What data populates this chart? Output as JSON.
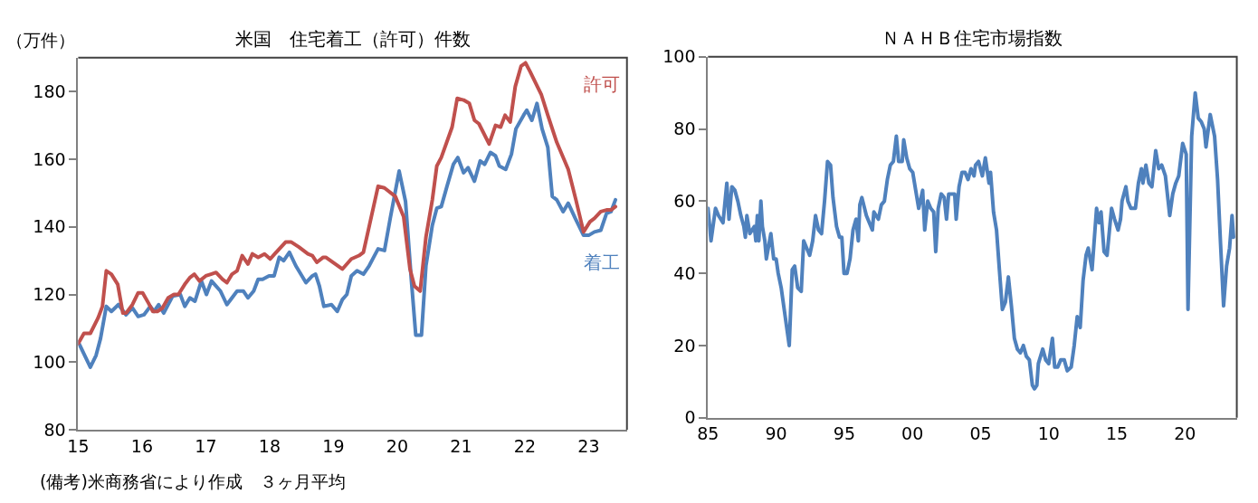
{
  "chart_data": [
    {
      "type": "line",
      "title": "米国　住宅着工（許可）件数",
      "ylabel": "（万件）",
      "annotations": [
        "(備考)米商務省により作成　３ヶ月平均"
      ],
      "legend": false,
      "grid": false,
      "xlim": [
        2015,
        2023.6
      ],
      "xticks": [
        {
          "value": 2015,
          "label": "15"
        },
        {
          "value": 2016,
          "label": "16"
        },
        {
          "value": 2017,
          "label": "17"
        },
        {
          "value": 2018,
          "label": "18"
        },
        {
          "value": 2019,
          "label": "19"
        },
        {
          "value": 2020,
          "label": "20"
        },
        {
          "value": 2021,
          "label": "21"
        },
        {
          "value": 2022,
          "label": "22"
        },
        {
          "value": 2023,
          "label": "23"
        }
      ],
      "ylim": [
        80,
        190
      ],
      "yticks": [
        80,
        100,
        120,
        140,
        160,
        180
      ],
      "series": [
        {
          "name": "着工",
          "color": "#4f81bd",
          "x": [
            2015.0,
            2015.19,
            2015.28,
            2015.35,
            2015.44,
            2015.52,
            2015.63,
            2015.75,
            2015.85,
            2015.94,
            2016.03,
            2016.13,
            2016.19,
            2016.26,
            2016.34,
            2016.48,
            2016.6,
            2016.67,
            2016.75,
            2016.83,
            2016.93,
            2017.01,
            2017.09,
            2017.23,
            2017.33,
            2017.49,
            2017.59,
            2017.66,
            2017.75,
            2017.82,
            2017.89,
            2017.99,
            2018.07,
            2018.15,
            2018.22,
            2018.31,
            2018.41,
            2018.57,
            2018.67,
            2018.72,
            2018.78,
            2018.85,
            2018.97,
            2019.06,
            2019.14,
            2019.21,
            2019.28,
            2019.37,
            2019.47,
            2019.56,
            2019.63,
            2019.7,
            2019.8,
            2019.89,
            2020.03,
            2020.13,
            2020.22,
            2020.29,
            2020.38,
            2020.45,
            2020.55,
            2020.62,
            2020.69,
            2020.78,
            2020.88,
            2020.95,
            2021.04,
            2021.11,
            2021.21,
            2021.3,
            2021.37,
            2021.46,
            2021.54,
            2021.6,
            2021.7,
            2021.79,
            2021.86,
            2021.98,
            2022.03,
            2022.11,
            2022.19,
            2022.27,
            2022.36,
            2022.43,
            2022.5,
            2022.6,
            2022.68,
            2022.79,
            2022.92,
            2023.0,
            2023.09,
            2023.19,
            2023.28,
            2023.35,
            2023.42
          ],
          "values": [
            106,
            98.5,
            102,
            107,
            116.5,
            115,
            117,
            114,
            116,
            113.5,
            114,
            116.5,
            115,
            117,
            114.5,
            119.5,
            120,
            116.5,
            119,
            118,
            124,
            120,
            124,
            121,
            117,
            121,
            121,
            119,
            121,
            124.5,
            124.5,
            125.5,
            125.5,
            131,
            130,
            132.5,
            128.5,
            123.5,
            125.5,
            126,
            122.5,
            116.5,
            117,
            115,
            118.5,
            120,
            125.5,
            127,
            126,
            128.5,
            131,
            133.5,
            133,
            142.5,
            156.5,
            147.5,
            124.5,
            108,
            108,
            128.5,
            140.5,
            145.5,
            146,
            152,
            158.5,
            160.5,
            156,
            157.5,
            153.5,
            159.5,
            158.5,
            162,
            161,
            158,
            157,
            161.5,
            169,
            173,
            174.5,
            171.5,
            176.5,
            169,
            163.5,
            149,
            148,
            144.5,
            147,
            142.5,
            137.5,
            137.5,
            138.5,
            139,
            144,
            144.5,
            148
          ]
        },
        {
          "name": "許可",
          "color": "#c0504d",
          "x": [
            2015.0,
            2015.09,
            2015.19,
            2015.31,
            2015.38,
            2015.44,
            2015.52,
            2015.62,
            2015.7,
            2015.75,
            2015.85,
            2015.94,
            2016.01,
            2016.1,
            2016.17,
            2016.24,
            2016.32,
            2016.41,
            2016.5,
            2016.57,
            2016.67,
            2016.75,
            2016.82,
            2016.9,
            2017.0,
            2017.08,
            2017.16,
            2017.26,
            2017.33,
            2017.41,
            2017.49,
            2017.57,
            2017.66,
            2017.73,
            2017.82,
            2017.92,
            2018.01,
            2018.08,
            2018.25,
            2018.34,
            2018.46,
            2018.6,
            2018.67,
            2018.74,
            2018.84,
            2018.88,
            2019.14,
            2019.28,
            2019.4,
            2019.47,
            2019.7,
            2019.8,
            2019.97,
            2020.1,
            2020.2,
            2020.27,
            2020.36,
            2020.45,
            2020.55,
            2020.62,
            2020.69,
            2020.86,
            2020.94,
            2021.04,
            2021.13,
            2021.21,
            2021.28,
            2021.44,
            2021.54,
            2021.62,
            2021.69,
            2021.77,
            2021.85,
            2021.94,
            2022.01,
            2022.08,
            2022.26,
            2022.36,
            2022.5,
            2022.68,
            2022.8,
            2022.92,
            2023.02,
            2023.09,
            2023.19,
            2023.28,
            2023.35,
            2023.42
          ],
          "values": [
            105.5,
            108.5,
            108.5,
            113,
            116.5,
            127,
            126,
            123,
            114.5,
            114.5,
            117,
            120.5,
            120.5,
            117.5,
            115,
            115,
            116,
            119,
            120,
            120,
            123,
            125,
            126,
            124,
            125.5,
            126,
            126.5,
            124.5,
            123.5,
            126,
            127,
            131.5,
            129,
            132,
            131,
            132,
            130.5,
            132,
            135.5,
            135.5,
            134,
            132,
            131.5,
            129.5,
            131,
            131,
            127.5,
            130.5,
            131.5,
            132.5,
            152,
            151.5,
            149,
            143,
            127.5,
            122.5,
            121,
            137,
            148,
            158,
            160.5,
            169.5,
            178,
            177.5,
            176.5,
            171.5,
            170.5,
            164.5,
            170,
            169.5,
            173,
            171,
            181.5,
            187.5,
            188.5,
            186,
            179,
            173,
            165,
            157,
            148,
            138.5,
            141.5,
            142.5,
            144.5,
            145,
            145,
            146
          ]
        }
      ]
    },
    {
      "type": "line",
      "title": "ＮＡＨＢ住宅市場指数",
      "legend": false,
      "grid": false,
      "xlim": [
        1985,
        2023.8
      ],
      "xticks": [
        {
          "value": 1985,
          "label": "85"
        },
        {
          "value": 1990,
          "label": "90"
        },
        {
          "value": 1995,
          "label": "95"
        },
        {
          "value": 2000,
          "label": "00"
        },
        {
          "value": 2005,
          "label": "05"
        },
        {
          "value": 2010,
          "label": "10"
        },
        {
          "value": 2015,
          "label": "15"
        },
        {
          "value": 2020,
          "label": "20"
        }
      ],
      "ylim": [
        0,
        100
      ],
      "yticks": [
        0,
        20,
        40,
        60,
        80,
        100
      ],
      "series": [
        {
          "color": "#4f81bd",
          "x": [
            1985.0,
            1985.22,
            1985.55,
            1985.77,
            1986.1,
            1986.38,
            1986.54,
            1986.75,
            1986.97,
            1987.19,
            1987.41,
            1987.63,
            1987.74,
            1987.85,
            1988.07,
            1988.4,
            1988.51,
            1988.62,
            1988.73,
            1988.88,
            1988.99,
            1989.17,
            1989.28,
            1989.61,
            1989.82,
            1990.0,
            1990.15,
            1990.37,
            1990.59,
            1990.96,
            1991.18,
            1991.36,
            1991.58,
            1991.84,
            1992.02,
            1992.24,
            1992.46,
            1992.68,
            1992.89,
            1993.11,
            1993.33,
            1993.55,
            1993.77,
            1993.99,
            1994.17,
            1994.43,
            1994.65,
            1994.82,
            1994.98,
            1995.2,
            1995.42,
            1995.64,
            1995.86,
            1996.03,
            1996.14,
            1996.29,
            1996.62,
            1996.84,
            1997.06,
            1997.17,
            1997.5,
            1997.72,
            1997.94,
            1998.16,
            1998.38,
            1998.6,
            1998.82,
            1998.99,
            1999.25,
            1999.36,
            1999.58,
            1999.8,
            2000.02,
            2000.24,
            2000.46,
            2000.75,
            2000.9,
            2001.12,
            2001.34,
            2001.56,
            2001.71,
            2001.89,
            2002.11,
            2002.33,
            2002.5,
            2002.66,
            2002.88,
            2003.1,
            2003.21,
            2003.42,
            2003.64,
            2003.86,
            2004.08,
            2004.3,
            2004.52,
            2004.63,
            2004.85,
            2005.13,
            2005.35,
            2005.62,
            2005.73,
            2005.95,
            2006.17,
            2006.38,
            2006.6,
            2006.82,
            2007.04,
            2007.26,
            2007.48,
            2007.7,
            2007.92,
            2008.14,
            2008.36,
            2008.58,
            2008.8,
            2008.95,
            2009.13,
            2009.24,
            2009.56,
            2009.78,
            2010.0,
            2010.27,
            2010.44,
            2010.66,
            2010.88,
            2011.14,
            2011.36,
            2011.65,
            2011.87,
            2012.09,
            2012.31,
            2012.52,
            2012.74,
            2012.9,
            2013.18,
            2013.51,
            2013.69,
            2013.84,
            2014.06,
            2014.28,
            2014.61,
            2014.83,
            2015.09,
            2015.27,
            2015.38,
            2015.66,
            2015.81,
            2016.03,
            2016.36,
            2016.58,
            2016.8,
            2016.91,
            2017.13,
            2017.35,
            2017.57,
            2017.85,
            2018.07,
            2018.29,
            2018.56,
            2018.88,
            2019.1,
            2019.32,
            2019.54,
            2019.83,
            2020.09,
            2020.22,
            2020.49,
            2020.75,
            2020.97,
            2021.19,
            2021.41,
            2021.54,
            2021.85,
            2022.17,
            2022.39,
            2022.61,
            2022.83,
            2023.05,
            2023.27,
            2023.45,
            2023.56
          ],
          "values": [
            58,
            49,
            58,
            56,
            54,
            65,
            55,
            64,
            63,
            60,
            56,
            53,
            50,
            56,
            51,
            53,
            49,
            56,
            49,
            60,
            53,
            49,
            44,
            51,
            44,
            44,
            40,
            36,
            30,
            20,
            41,
            42,
            36,
            35,
            49,
            47,
            45,
            49,
            56,
            52,
            51,
            60,
            71,
            70,
            61,
            53,
            50,
            50,
            40,
            40,
            44,
            52,
            55,
            49,
            59,
            61,
            56,
            54,
            52,
            57,
            55,
            59,
            60,
            66,
            70,
            71,
            78,
            71,
            71,
            77,
            72,
            69,
            68,
            63,
            58,
            63,
            52,
            60,
            58,
            57,
            46,
            58,
            62,
            61,
            55,
            62,
            62,
            62,
            55,
            64,
            68,
            68,
            66,
            69,
            67,
            70,
            71,
            67,
            72,
            65,
            68,
            57,
            52,
            41,
            30,
            32,
            39,
            31,
            22,
            19,
            18,
            20,
            17,
            16,
            9,
            8,
            9,
            15,
            19,
            16,
            15,
            22,
            14,
            14,
            16,
            16,
            13,
            14,
            20,
            28,
            25,
            38,
            45,
            47,
            41,
            58,
            54,
            57,
            46,
            45,
            58,
            55,
            52,
            55,
            60,
            64,
            60,
            58,
            58,
            65,
            69,
            65,
            70,
            65,
            64,
            74,
            69,
            70,
            67,
            56,
            62,
            65,
            67,
            76,
            73,
            30,
            78,
            90,
            83,
            82,
            80,
            75,
            84,
            78,
            66,
            48,
            31,
            42,
            47,
            56,
            50
          ]
        }
      ]
    }
  ]
}
